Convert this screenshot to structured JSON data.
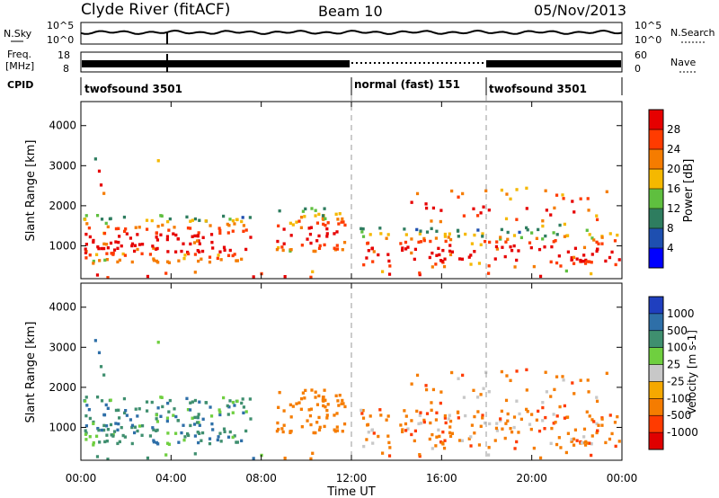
{
  "header": {
    "station": "Clyde River (fitACF)",
    "beam": "Beam 10",
    "date": "05/Nov/2013"
  },
  "aux_panels": {
    "nsky": {
      "label": "N.Sky",
      "tick_top": "10^5",
      "tick_bottom": "10^0",
      "right_label": "N.Search",
      "right_tick_top": "10^5",
      "right_tick_bottom": "10^0"
    },
    "freq": {
      "label_line1": "Freq.",
      "label_line2": "[MHz]",
      "tick_top": "18",
      "tick_bottom": "8",
      "right_label": "Nave",
      "right_tick_top": "60",
      "right_tick_bottom": "0"
    },
    "cpid": {
      "label": "CPID",
      "segments": [
        {
          "start_hour": 0,
          "end_hour": 12,
          "label": "twofsound 3501"
        },
        {
          "start_hour": 12,
          "end_hour": 18,
          "label": "normal (fast) 151"
        },
        {
          "start_hour": 18,
          "end_hour": 24,
          "label": "twofsound 3501"
        }
      ]
    }
  },
  "chart_data": [
    {
      "type": "heatmap",
      "panel": "power",
      "ylabel": "Slant Range [km]",
      "ylim": [
        180,
        4600
      ],
      "y_ticks": [
        1000,
        2000,
        3000,
        4000
      ],
      "xlim": [
        0,
        24
      ],
      "colorbar": {
        "label": "Power [dB]",
        "ticks": [
          "4",
          "8",
          "12",
          "16",
          "20",
          "24",
          "28"
        ],
        "colors": [
          "#0000ff",
          "#1e4fb0",
          "#2e7d5f",
          "#5fbf3f",
          "#f5b800",
          "#f57c00",
          "#ff3b00",
          "#e60000"
        ]
      }
    },
    {
      "type": "heatmap",
      "panel": "velocity",
      "ylabel": "Slant Range [km]",
      "ylim": [
        180,
        4600
      ],
      "y_ticks": [
        1000,
        2000,
        3000,
        4000
      ],
      "xlim": [
        0,
        24
      ],
      "xlabel": "Time UT",
      "x_ticks": [
        "00:00",
        "04:00",
        "08:00",
        "12:00",
        "16:00",
        "20:00",
        "00:00"
      ],
      "colorbar": {
        "label": "Velocity [m s-1]",
        "ticks": [
          "1000",
          "500",
          "100",
          "25",
          "-25",
          "-100",
          "-500",
          "-1000"
        ],
        "colors": [
          "#1f3fbf",
          "#2e6fa8",
          "#3f8f6f",
          "#6fcf3f",
          "#c8c8c8",
          "#f5a800",
          "#f57c00",
          "#ff3b00",
          "#e00000"
        ]
      }
    }
  ]
}
